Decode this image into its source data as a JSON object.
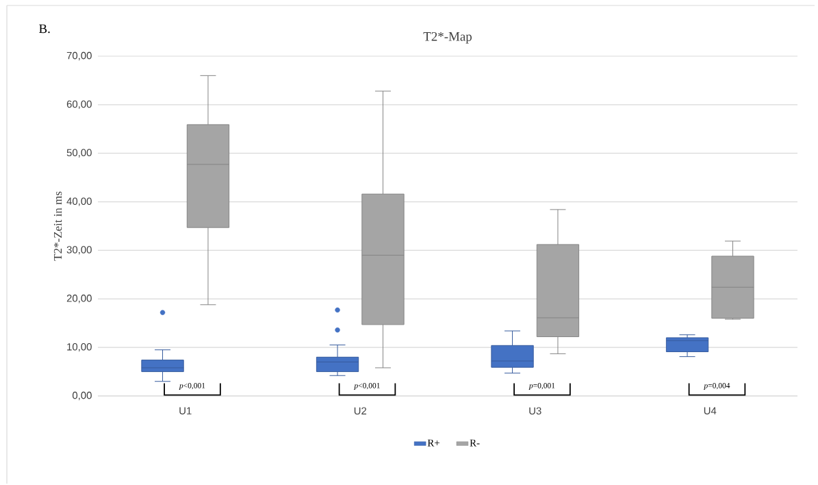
{
  "chart_data": {
    "type": "box",
    "title": "T2*-Map",
    "ylabel": "T2*-Zeit in ms",
    "categories": [
      "U1",
      "U2",
      "U3",
      "U4"
    ],
    "series": [
      {
        "name": "R+",
        "color": "#4472c4",
        "boxes": [
          {
            "low": 3.0,
            "q1": 5.0,
            "median": 5.8,
            "q3": 7.4,
            "high": 9.5,
            "outliers": [
              17.2
            ]
          },
          {
            "low": 4.2,
            "q1": 5.0,
            "median": 7.0,
            "q3": 8.0,
            "high": 10.5,
            "outliers": [
              13.6,
              17.7
            ]
          },
          {
            "low": 4.7,
            "q1": 5.9,
            "median": 7.2,
            "q3": 10.4,
            "high": 13.4
          },
          {
            "low": 8.1,
            "q1": 9.1,
            "median": 11.4,
            "q3": 12.0,
            "high": 12.6
          }
        ]
      },
      {
        "name": "R-",
        "color": "#a5a5a5",
        "boxes": [
          {
            "low": 18.8,
            "q1": 34.7,
            "median": 47.7,
            "q3": 55.9,
            "high": 66.0
          },
          {
            "low": 5.8,
            "q1": 14.7,
            "median": 29.0,
            "q3": 41.6,
            "high": 62.8
          },
          {
            "low": 8.7,
            "q1": 12.2,
            "median": 16.1,
            "q3": 31.2,
            "high": 38.4
          },
          {
            "low": 15.8,
            "q1": 16.0,
            "median": 22.4,
            "q3": 28.8,
            "high": 31.9
          }
        ]
      }
    ],
    "ylim": [
      0,
      70
    ],
    "yticks": [
      {
        "value": 0,
        "label": "0,00"
      },
      {
        "value": 10,
        "label": "10,00"
      },
      {
        "value": 20,
        "label": "20,00"
      },
      {
        "value": 30,
        "label": "30,00"
      },
      {
        "value": 40,
        "label": "40,00"
      },
      {
        "value": 50,
        "label": "50,00"
      },
      {
        "value": 60,
        "label": "60,00"
      },
      {
        "value": 70,
        "label": "70,00"
      }
    ],
    "grid": "y",
    "legend": "bottom",
    "annotations": [
      "B.",
      "*p*<0,001",
      "*p*<0,001",
      "*p*=0,001",
      "*p*=0,004"
    ]
  }
}
